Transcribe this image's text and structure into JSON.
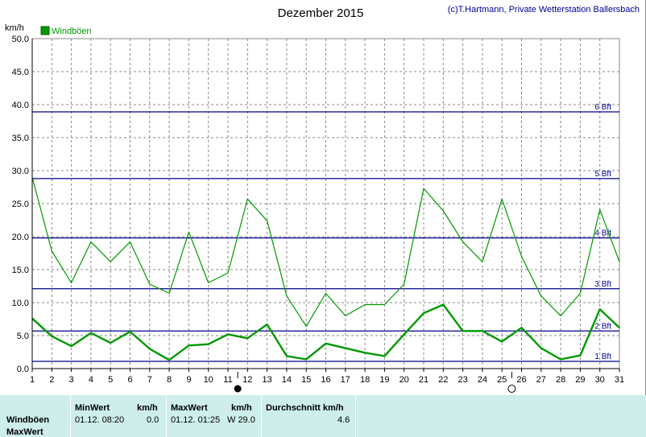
{
  "chart_data": {
    "type": "line",
    "title": "Dezember 2015",
    "credit": "(c)T.Hartmann, Private Wetterstation Ballersbach",
    "ylabel": "km/h",
    "ylim": [
      0,
      50
    ],
    "y_ticks": [
      "0.0",
      "5.0",
      "10.0",
      "15.0",
      "20.0",
      "25.0",
      "30.0",
      "35.0",
      "40.0",
      "45.0",
      "50.0"
    ],
    "xlim": [
      1,
      31
    ],
    "x_ticks": [
      "1",
      "2",
      "3",
      "4",
      "5",
      "6",
      "7",
      "8",
      "9",
      "10",
      "11",
      "12",
      "13",
      "14",
      "15",
      "16",
      "17",
      "18",
      "19",
      "20",
      "21",
      "22",
      "23",
      "24",
      "25",
      "26",
      "27",
      "28",
      "29",
      "30",
      "31"
    ],
    "grid": true,
    "legend": "top-left",
    "series": [
      {
        "name": "Windböen",
        "color": "#009900",
        "x": [
          1,
          2,
          3,
          4,
          5,
          6,
          7,
          8,
          9,
          10,
          11,
          12,
          13,
          14,
          15,
          16,
          17,
          18,
          19,
          20,
          21,
          22,
          23,
          24,
          25,
          26,
          27,
          28,
          29,
          30,
          31
        ],
        "values": [
          29.0,
          17.8,
          13.0,
          19.2,
          16.2,
          19.2,
          12.8,
          11.4,
          20.7,
          13.0,
          14.5,
          25.7,
          22.4,
          11.0,
          6.4,
          11.4,
          8.0,
          9.7,
          9.7,
          12.8,
          27.3,
          23.9,
          19.2,
          16.2,
          25.7,
          17.0,
          11.0,
          8.0,
          11.4,
          24.1,
          16.2
        ]
      },
      {
        "name": "",
        "color": "#009900",
        "x": [
          1,
          2,
          3,
          4,
          5,
          6,
          7,
          8,
          9,
          10,
          11,
          12,
          13,
          14,
          15,
          16,
          17,
          18,
          19,
          20,
          21,
          22,
          23,
          24,
          25,
          26,
          27,
          28,
          29,
          30,
          31
        ],
        "values": [
          7.6,
          4.9,
          3.4,
          5.4,
          3.9,
          5.6,
          3.0,
          1.3,
          3.5,
          3.7,
          5.2,
          4.6,
          6.7,
          1.9,
          1.4,
          3.8,
          3.1,
          2.4,
          1.9,
          5.2,
          8.4,
          9.7,
          5.7,
          5.7,
          4.1,
          6.2,
          3.1,
          1.4,
          2.0,
          9.0,
          6.2
        ]
      }
    ],
    "reference_lines": [
      {
        "label": "1 Bft",
        "value": 1.1
      },
      {
        "label": "2 Bft",
        "value": 5.7
      },
      {
        "label": "3 Bft",
        "value": 12.1
      },
      {
        "label": "4 Bft",
        "value": 19.8
      },
      {
        "label": "5 Bft",
        "value": 28.8
      },
      {
        "label": "6 Bft",
        "value": 38.9
      }
    ],
    "reference_line_color": "#00008b",
    "moon_phases": [
      {
        "day": 11,
        "phase": "new-moon"
      },
      {
        "day": 25,
        "phase": "full-moon"
      }
    ]
  },
  "stats": {
    "row_labels": [
      "Windböen",
      "MaxWert"
    ],
    "min_header": "MinWert",
    "min_unit_header": "km/h",
    "min_time": "01.12.  08:20",
    "min_value": "0.0",
    "max_header": "MaxWert",
    "max_unit_header": "km/h",
    "max_time": "01.12.  01:25",
    "max_value": "W 29.0",
    "avg_header": "Durchschnitt km/h",
    "avg_value": "4.6"
  }
}
